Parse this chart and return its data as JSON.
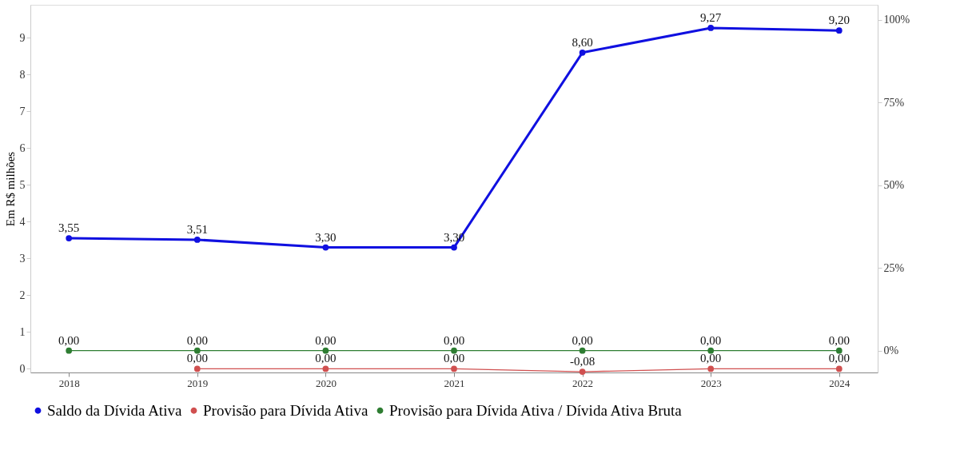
{
  "chart_data": {
    "type": "line",
    "categories": [
      "2018",
      "2019",
      "2020",
      "2021",
      "2022",
      "2023",
      "2024"
    ],
    "ylabel": "Em R$ milhões",
    "series": [
      {
        "name": "Saldo da Dívida Ativa",
        "color": "#1010e0",
        "values": [
          3.55,
          3.51,
          3.3,
          3.3,
          8.6,
          9.27,
          9.2
        ],
        "value_labels": [
          "3,55",
          "3,51",
          "3,30",
          "3,30",
          "8,60",
          "9,27",
          "9,20"
        ]
      },
      {
        "name": "Provisão para Dívida Ativa",
        "color": "#d05050",
        "values": [
          null,
          0,
          0,
          0,
          -0.08,
          0,
          0
        ],
        "value_labels": [
          null,
          "0,00",
          "0,00",
          "0,00",
          "-0,08",
          "0,00",
          "0,00"
        ]
      },
      {
        "name": "Provisão para Dívida Ativa / Dívida Ativa Bruta",
        "color": "#2e7d32",
        "axis": "y2",
        "values": [
          0,
          0,
          0,
          0,
          0,
          0,
          0
        ],
        "value_labels": [
          "0,00",
          "0,00",
          "0,00",
          "0,00",
          "0,00",
          "0,00",
          "0,00"
        ]
      }
    ],
    "ylim": [
      -0.1,
      9.9
    ],
    "yticks": [
      0,
      1,
      2,
      3,
      4,
      5,
      6,
      7,
      8,
      9
    ],
    "y2lim": [
      -6.6,
      104.5
    ],
    "y2ticks": [
      {
        "value": 0,
        "label": "0%"
      },
      {
        "value": 25,
        "label": "25%"
      },
      {
        "value": 50,
        "label": "50%"
      },
      {
        "value": 75,
        "label": "75%"
      },
      {
        "value": 100,
        "label": "100%"
      }
    ],
    "marker": "circle",
    "grid": false,
    "legend": "bottom"
  }
}
